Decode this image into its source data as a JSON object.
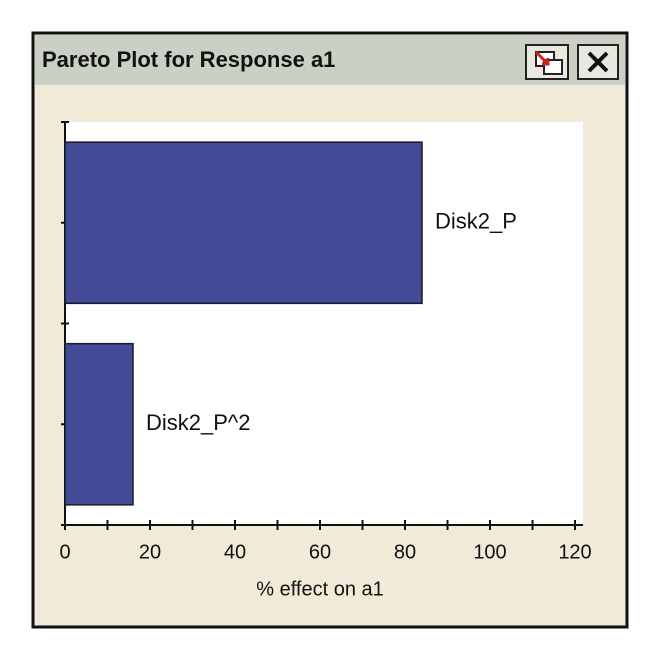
{
  "chart_data": {
    "type": "hbar",
    "title": "Pareto Plot for Response a1",
    "categories": [
      "Disk2_P",
      "Disk2_P^2"
    ],
    "values": [
      84,
      16
    ],
    "color": "#434a96",
    "xlabel": "% effect on a1",
    "xlim": [
      0,
      120
    ],
    "xticks": [
      0,
      20,
      40,
      60,
      80,
      100,
      120
    ],
    "xminorticks": [
      10,
      30,
      50,
      70,
      90,
      110
    ]
  }
}
